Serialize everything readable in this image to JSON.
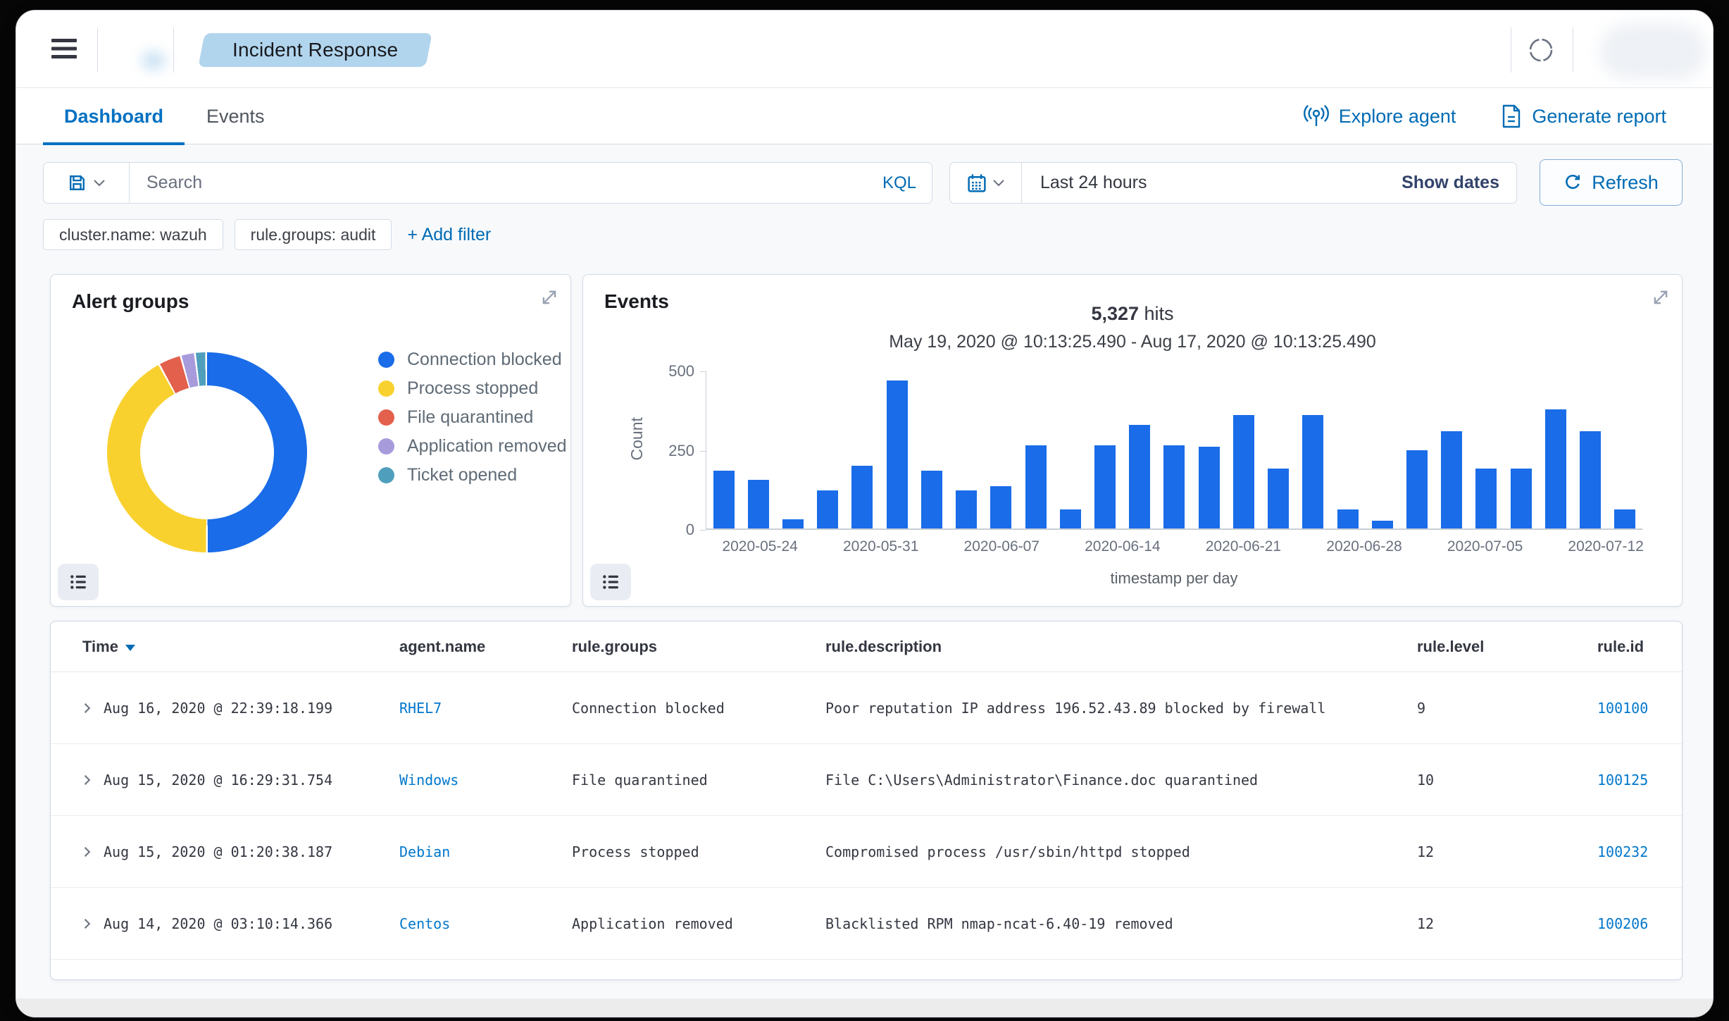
{
  "topbar": {
    "breadcrumb": "Incident Response"
  },
  "tabs": {
    "dashboard": "Dashboard",
    "events": "Events"
  },
  "actions": {
    "explore": "Explore agent",
    "report": "Generate report"
  },
  "searchbar": {
    "placeholder": "Search",
    "language": "KQL"
  },
  "datebar": {
    "value": "Last 24 hours",
    "show_dates": "Show dates"
  },
  "refresh": {
    "label": "Refresh"
  },
  "filters": {
    "pills": [
      "cluster.name: wazuh",
      "rule.groups: audit"
    ],
    "add": "+ Add filter"
  },
  "alert_groups_panel": {
    "title": "Alert groups"
  },
  "events_panel": {
    "title": "Events",
    "hits": "5,327",
    "hits_suffix": " hits",
    "range": "May 19, 2020 @ 10:13:25.490 - Aug 17, 2020 @ 10:13:25.490",
    "ylabel": "Count",
    "xlabel": "timestamp per day"
  },
  "chart_data": [
    {
      "type": "pie",
      "donut": true,
      "title": "Alert groups",
      "labels": [
        "Connection blocked",
        "Process stopped",
        "File quarantined",
        "Application removed",
        "Ticket opened"
      ],
      "values": [
        50,
        41.8,
        3.4,
        2.0,
        1.5
      ],
      "colors": [
        "#1a6ce8",
        "#f9d12f",
        "#e2604c",
        "#a79bdc",
        "#4f9fbc"
      ],
      "legend_position": "right"
    },
    {
      "type": "bar",
      "title": "Events",
      "ylabel": "Count",
      "xlabel": "timestamp per day",
      "ylim": [
        0,
        500
      ],
      "yticks": [
        0,
        250,
        500
      ],
      "bar_color": "#1a6ce8",
      "values": [
        185,
        155,
        30,
        120,
        200,
        470,
        185,
        120,
        135,
        265,
        60,
        265,
        330,
        265,
        260,
        360,
        190,
        360,
        60,
        25,
        250,
        310,
        190,
        190,
        380,
        310,
        60
      ],
      "x_tick_labels": [
        "2020-05-24",
        "2020-05-31",
        "2020-06-07",
        "2020-06-14",
        "2020-06-21",
        "2020-06-28",
        "2020-07-05",
        "2020-07-12"
      ],
      "x_tick_positions": [
        0.058,
        0.187,
        0.316,
        0.445,
        0.574,
        0.703,
        0.832,
        0.961
      ]
    }
  ],
  "table": {
    "columns": [
      "Time",
      "agent.name",
      "rule.groups",
      "rule.description",
      "rule.level",
      "rule.id"
    ],
    "rows": [
      {
        "time": "Aug 16, 2020 @ 22:39:18.199",
        "agent": "RHEL7",
        "groups": "Connection blocked",
        "description": "Poor reputation IP address 196.52.43.89 blocked by firewall",
        "level": "9",
        "id": "100100"
      },
      {
        "time": "Aug 15, 2020 @ 16:29:31.754",
        "agent": "Windows",
        "groups": "File quarantined",
        "description": "File C:\\Users\\Administrator\\Finance.doc quarantined",
        "level": "10",
        "id": "100125"
      },
      {
        "time": "Aug 15, 2020 @ 01:20:38.187",
        "agent": "Debian",
        "groups": "Process stopped",
        "description": "Compromised process /usr/sbin/httpd stopped",
        "level": "12",
        "id": "100232"
      },
      {
        "time": "Aug 14, 2020 @ 03:10:14.366",
        "agent": "Centos",
        "groups": "Application removed",
        "description": "Blacklisted RPM nmap-ncat-6.40-19 removed",
        "level": "12",
        "id": "100206"
      }
    ]
  }
}
